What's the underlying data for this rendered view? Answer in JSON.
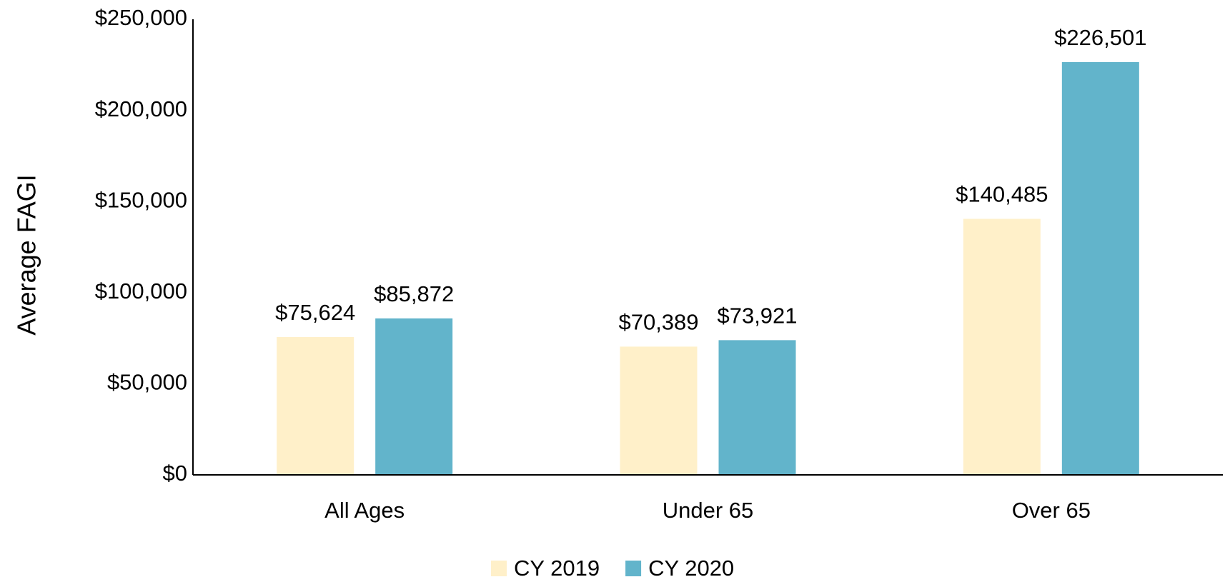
{
  "chart_data": {
    "type": "bar",
    "y_label": "Average FAGI",
    "categories": [
      "All Ages",
      "Under 65",
      "Over 65"
    ],
    "series": [
      {
        "name": "CY 2019",
        "color": "#fff0c9",
        "values": [
          75624,
          70389,
          140485
        ],
        "value_labels": [
          "$75,624",
          "$70,389",
          "$140,485"
        ]
      },
      {
        "name": "CY 2020",
        "color": "#62b4cb",
        "values": [
          85872,
          73921,
          226501
        ],
        "value_labels": [
          "$85,872",
          "$73,921",
          "$226,501"
        ]
      }
    ],
    "ylim": [
      0,
      250000
    ],
    "yticks": [
      {
        "value": 0,
        "label": "$0"
      },
      {
        "value": 50000,
        "label": "$50,000"
      },
      {
        "value": 100000,
        "label": "$100,000"
      },
      {
        "value": 150000,
        "label": "$150,000"
      },
      {
        "value": 200000,
        "label": "$200,000"
      },
      {
        "value": 250000,
        "label": "$250,000"
      }
    ],
    "grid": false,
    "legend": "bottom"
  }
}
